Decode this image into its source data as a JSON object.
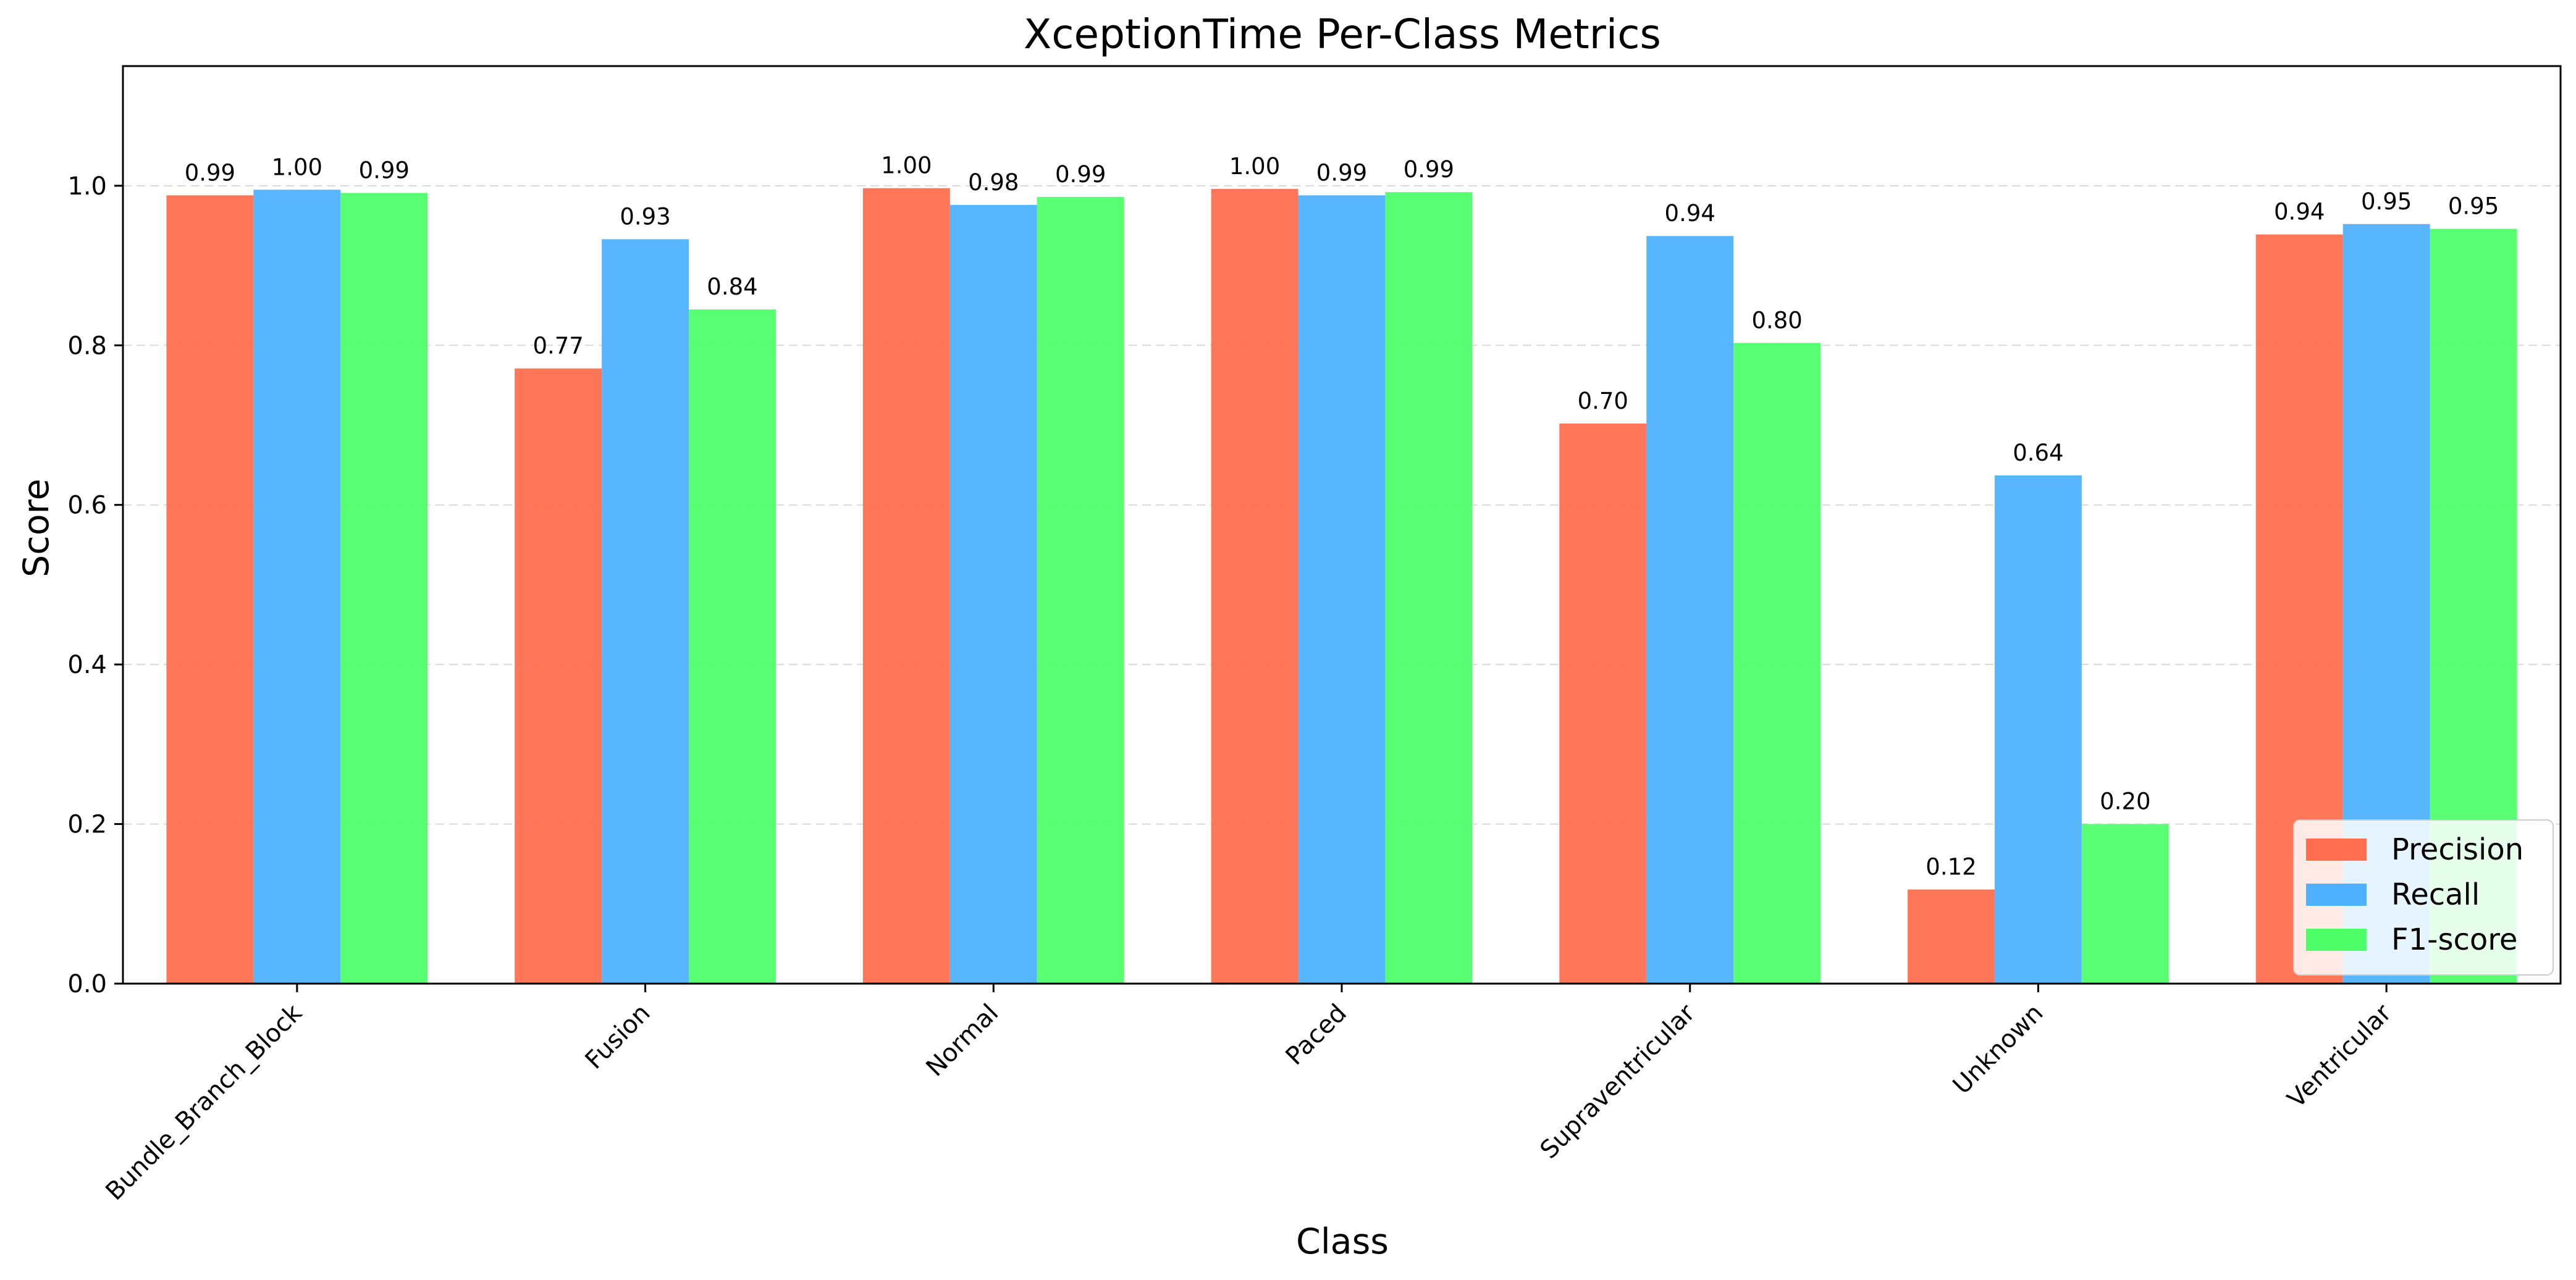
{
  "chart_data": {
    "type": "bar",
    "title": "XceptionTime Per-Class Metrics",
    "xlabel": "Class",
    "ylabel": "Score",
    "ylim": [
      0,
      1.15
    ],
    "yticks": [
      "0.0",
      "0.2",
      "0.4",
      "0.6",
      "0.8",
      "1.0"
    ],
    "grid": "y, dashed",
    "legend_position": "lower-right",
    "categories": [
      "Bundle_Branch_Block",
      "Fusion",
      "Normal",
      "Paced",
      "Supraventricular",
      "Unknown",
      "Ventricular"
    ],
    "series": [
      {
        "name": "Precision",
        "color": "#FF6F4F",
        "values": [
          0.988,
          0.771,
          0.997,
          0.996,
          0.702,
          0.118,
          0.939
        ],
        "labels": [
          "0.99",
          "0.77",
          "1.00",
          "1.00",
          "0.70",
          "0.12",
          "0.94"
        ]
      },
      {
        "name": "Recall",
        "color": "#4FB2FF",
        "values": [
          0.995,
          0.933,
          0.976,
          0.988,
          0.937,
          0.637,
          0.952
        ],
        "labels": [
          "1.00",
          "0.93",
          "0.98",
          "0.99",
          "0.94",
          "0.64",
          "0.95"
        ]
      },
      {
        "name": "F1-score",
        "color": "#4FFF6A",
        "values": [
          0.991,
          0.845,
          0.986,
          0.992,
          0.803,
          0.2,
          0.946
        ],
        "labels": [
          "0.99",
          "0.84",
          "0.99",
          "0.99",
          "0.80",
          "0.20",
          "0.95"
        ]
      }
    ]
  }
}
